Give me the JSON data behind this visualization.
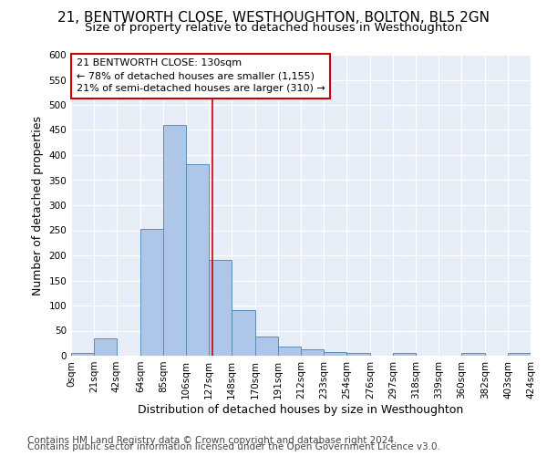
{
  "title": "21, BENTWORTH CLOSE, WESTHOUGHTON, BOLTON, BL5 2GN",
  "subtitle": "Size of property relative to detached houses in Westhoughton",
  "xlabel": "Distribution of detached houses by size in Westhoughton",
  "ylabel": "Number of detached properties",
  "bin_edges": [
    0,
    21,
    42,
    64,
    85,
    106,
    127,
    148,
    170,
    191,
    212,
    233,
    254,
    276,
    297,
    318,
    339,
    360,
    382,
    403,
    424
  ],
  "bar_heights": [
    5,
    35,
    0,
    252,
    460,
    381,
    191,
    91,
    38,
    19,
    13,
    8,
    6,
    0,
    6,
    0,
    0,
    5,
    0,
    5
  ],
  "bar_color": "#aec6e8",
  "bar_edge_color": "#5b8db8",
  "property_size": 130,
  "vline_color": "#cc0000",
  "annotation_line1": "21 BENTWORTH CLOSE: 130sqm",
  "annotation_line2": "← 78% of detached houses are smaller (1,155)",
  "annotation_line3": "21% of semi-detached houses are larger (310) →",
  "annotation_box_color": "white",
  "annotation_box_edge": "#cc0000",
  "ylim": [
    0,
    600
  ],
  "yticks": [
    0,
    50,
    100,
    150,
    200,
    250,
    300,
    350,
    400,
    450,
    500,
    550,
    600
  ],
  "footer1": "Contains HM Land Registry data © Crown copyright and database right 2024.",
  "footer2": "Contains public sector information licensed under the Open Government Licence v3.0.",
  "title_fontsize": 11,
  "subtitle_fontsize": 9.5,
  "tick_label_fontsize": 7.5,
  "axis_label_fontsize": 9,
  "annotation_fontsize": 8,
  "footer_fontsize": 7.5
}
